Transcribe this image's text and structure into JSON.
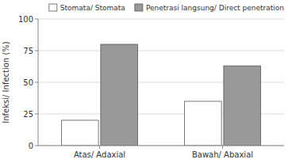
{
  "chart_data": {
    "type": "bar",
    "categories": [
      "Atas/ Adaxial",
      "Bawah/ Abaxial"
    ],
    "series": [
      {
        "name": "Stomata/ Stomata",
        "color": "#ffffff",
        "values": [
          20,
          35
        ]
      },
      {
        "name": "Penetrasi langsung/ Direct penetration",
        "color": "#999999",
        "values": [
          80,
          63
        ]
      }
    ],
    "ylabel": "Infeksi/ Infection (%)",
    "ylim": [
      0,
      100
    ],
    "yticks": [
      0,
      25,
      50,
      75,
      100
    ],
    "grid": true,
    "legend": "upper right"
  }
}
